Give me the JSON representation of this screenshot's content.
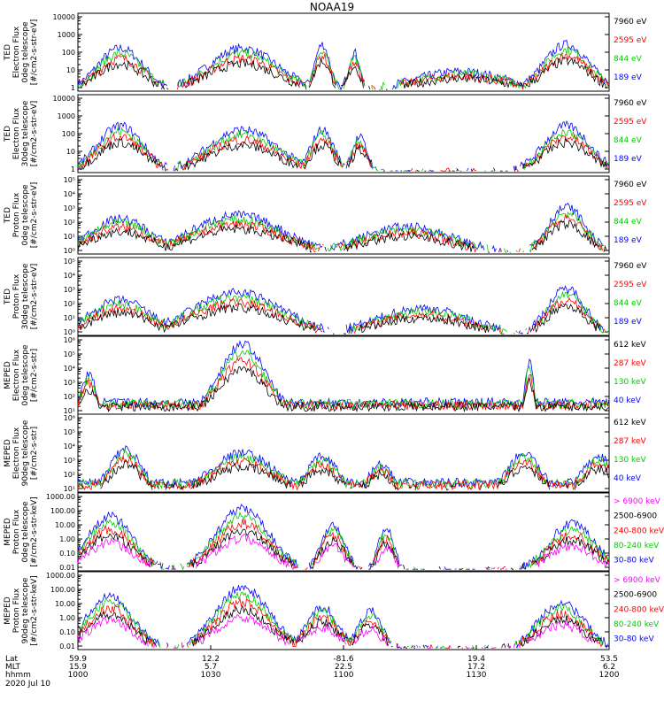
{
  "chart_data": {
    "type": "line",
    "title": "NOAA19",
    "panels": [
      {
        "ylabel": [
          "TED",
          "Electron Flux",
          "0deg telescope",
          "[#/cm2-s-str-eV]"
        ],
        "yticks": [
          "10000",
          "1000",
          "100",
          "10",
          "1"
        ],
        "legend": [
          {
            "name": "7960 eV",
            "color": "#000000"
          },
          {
            "name": "2595 eV",
            "color": "#ff0000"
          },
          {
            "name": "844 eV",
            "color": "#00cc00"
          },
          {
            "name": "189 eV",
            "color": "#0000ff"
          }
        ]
      },
      {
        "ylabel": [
          "TED",
          "Electron Flux",
          "30deg telescope",
          "[#/cm2-s-str-eV]"
        ],
        "yticks": [
          "10000",
          "1000",
          "100",
          "10",
          "1"
        ],
        "legend": [
          {
            "name": "7960 eV",
            "color": "#000000"
          },
          {
            "name": "2595 eV",
            "color": "#ff0000"
          },
          {
            "name": "844 eV",
            "color": "#00cc00"
          },
          {
            "name": "189 eV",
            "color": "#0000ff"
          }
        ]
      },
      {
        "ylabel": [
          "TED",
          "Proton Flux",
          "0deg telescope",
          "[#/cm2-s-str-eV]"
        ],
        "yticks": [
          "10⁵",
          "10⁴",
          "10³",
          "10²",
          "10¹",
          "10⁰"
        ],
        "legend": [
          {
            "name": "7960 eV",
            "color": "#000000"
          },
          {
            "name": "2595 eV",
            "color": "#ff0000"
          },
          {
            "name": "844 eV",
            "color": "#00cc00"
          },
          {
            "name": "189 eV",
            "color": "#0000ff"
          }
        ]
      },
      {
        "ylabel": [
          "TED",
          "Proton Flux",
          "30deg telescope",
          "[#/cm2-s-str-eV]"
        ],
        "yticks": [
          "10⁵",
          "10⁴",
          "10³",
          "10²",
          "10¹",
          "10⁰"
        ],
        "legend": [
          {
            "name": "7960 eV",
            "color": "#000000"
          },
          {
            "name": "2595 eV",
            "color": "#ff0000"
          },
          {
            "name": "844 eV",
            "color": "#00cc00"
          },
          {
            "name": "189 eV",
            "color": "#0000ff"
          }
        ]
      },
      {
        "ylabel": [
          "MEPED",
          "Electron Flux",
          "0deg telescope",
          "[#/cm2-s-str]"
        ],
        "yticks": [
          "10⁶",
          "10⁵",
          "10⁴",
          "10³",
          "10²",
          "10¹"
        ],
        "legend": [
          {
            "name": "612 keV",
            "color": "#000000"
          },
          {
            "name": "287 keV",
            "color": "#ff0000"
          },
          {
            "name": "130 keV",
            "color": "#00cc00"
          },
          {
            "name": "40 keV",
            "color": "#0000ff"
          }
        ]
      },
      {
        "ylabel": [
          "MEPED",
          "Electron Flux",
          "90deg telescope",
          "[#/cm2-s-str]"
        ],
        "yticks": [
          "10⁶",
          "10⁵",
          "10⁴",
          "10³",
          "10²",
          "10¹"
        ],
        "legend": [
          {
            "name": "612 keV",
            "color": "#000000"
          },
          {
            "name": "287 keV",
            "color": "#ff0000"
          },
          {
            "name": "130 keV",
            "color": "#00cc00"
          },
          {
            "name": "40 keV",
            "color": "#0000ff"
          }
        ]
      },
      {
        "ylabel": [
          "MEPED",
          "Proton Flux",
          "0deg telescope",
          "[#/cm2-s-str-keV]"
        ],
        "yticks": [
          "1000.00",
          "100.00",
          "10.00",
          "1.00",
          "0.10",
          "0.01"
        ],
        "legend": [
          {
            "name": "> 6900 keV",
            "color": "#ff00ff"
          },
          {
            "name": "2500-6900",
            "color": "#000000"
          },
          {
            "name": "240-800 keV",
            "color": "#ff0000"
          },
          {
            "name": "80-240 keV",
            "color": "#00cc00"
          },
          {
            "name": "30-80 keV",
            "color": "#0000ff"
          }
        ]
      },
      {
        "ylabel": [
          "MEPED",
          "Proton Flux",
          "90deg telescope",
          "[#/cm2-s-str-keV]"
        ],
        "yticks": [
          "1000.00",
          "100.00",
          "10.00",
          "1.00",
          "0.10",
          "0.01"
        ],
        "legend": [
          {
            "name": "> 6900 keV",
            "color": "#ff00ff"
          },
          {
            "name": "2500-6900",
            "color": "#000000"
          },
          {
            "name": "240-800 keV",
            "color": "#ff0000"
          },
          {
            "name": "80-240 keV",
            "color": "#00cc00"
          },
          {
            "name": "30-80 keV",
            "color": "#0000ff"
          }
        ]
      }
    ],
    "x_axis": {
      "row_labels": [
        "Lat",
        "MLT",
        "hhmm",
        "2020 Jul 10"
      ],
      "columns": [
        {
          "Lat": "59.9",
          "MLT": "15.9",
          "hhmm": "1000"
        },
        {
          "Lat": "12.2",
          "MLT": "5.7",
          "hhmm": "1030"
        },
        {
          "Lat": "-81.6",
          "MLT": "22.5",
          "hhmm": "1100"
        },
        {
          "Lat": "19.4",
          "MLT": "17.2",
          "hhmm": "1130"
        },
        {
          "Lat": "53.5",
          "MLT": "6.2",
          "hhmm": "1200"
        }
      ]
    }
  }
}
